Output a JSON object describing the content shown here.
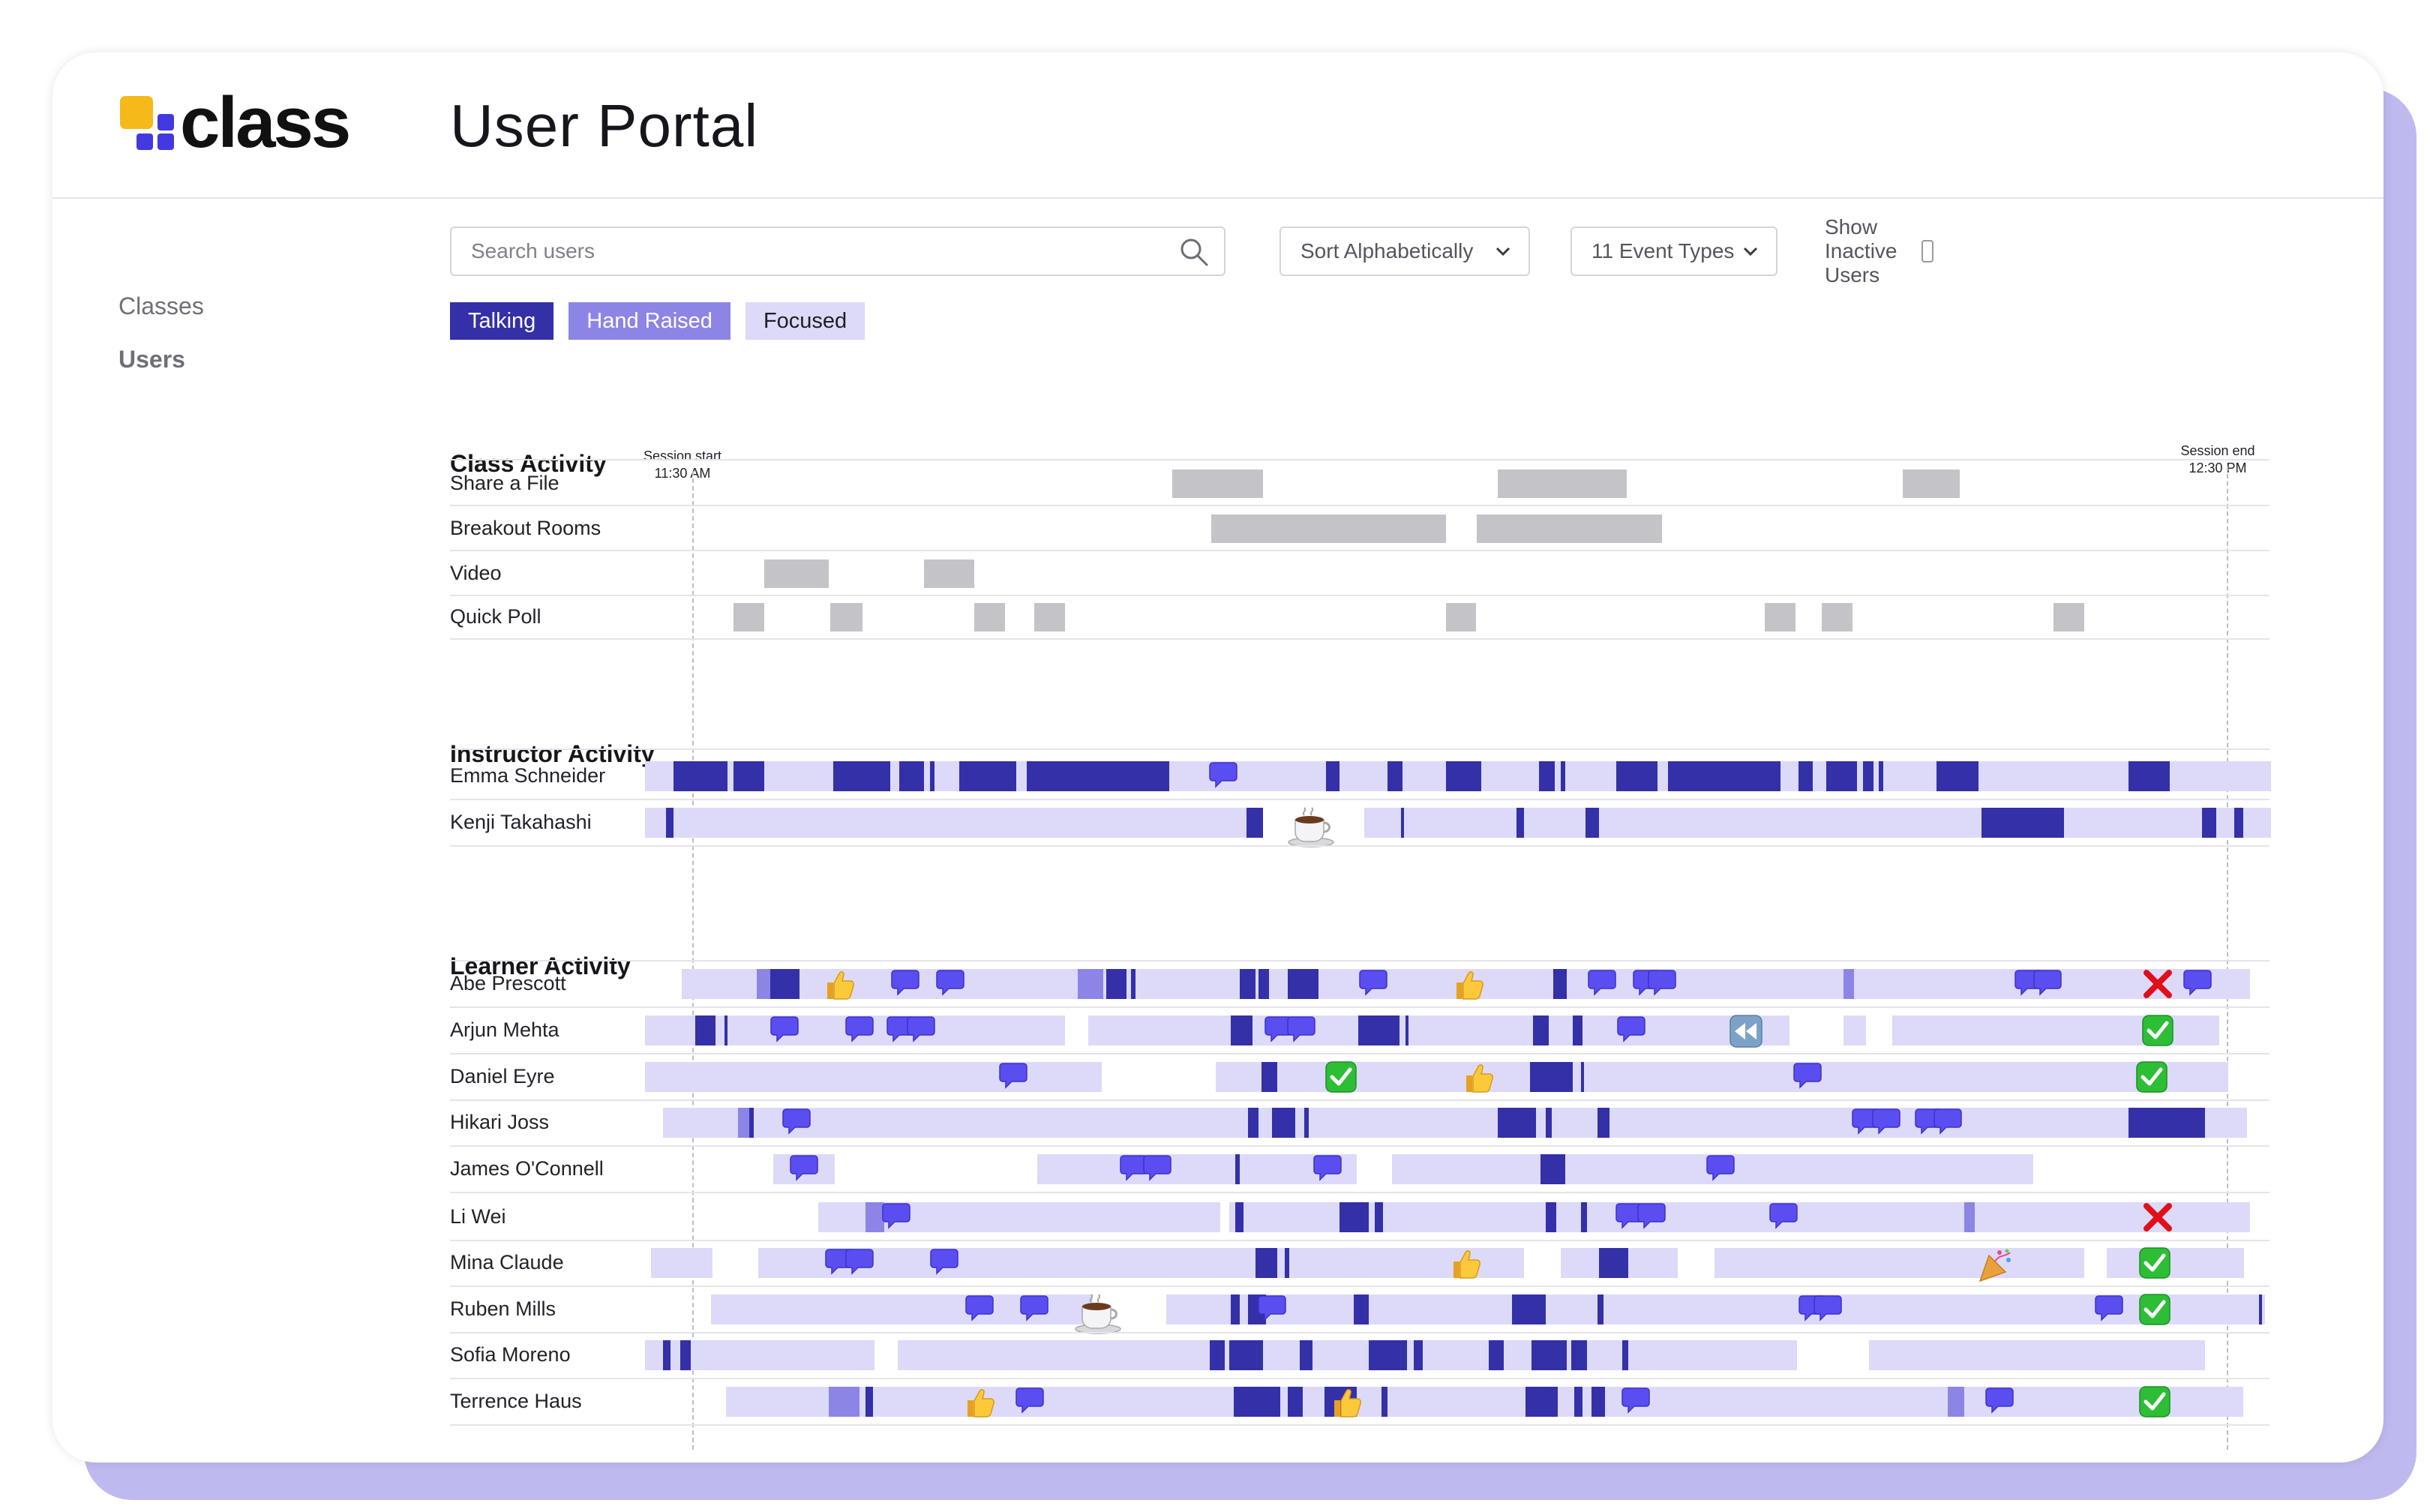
{
  "app": {
    "logo_text": "class",
    "page_title": "User Portal",
    "colors": {
      "brand_blue": "#4339e0",
      "brand_yellow": "#f6b91a",
      "talking": "#3430a8",
      "hand_raised": "#8c85e6",
      "focused": "#dcdaf8",
      "class_event": "#c4c4c8"
    }
  },
  "sidebar": {
    "items": [
      {
        "label": "Classes",
        "active": false
      },
      {
        "label": "Users",
        "active": true
      }
    ]
  },
  "toolbar": {
    "search_placeholder": "Search users",
    "search_value": "",
    "sort_label": "Sort Alphabetically",
    "event_types_label": "11 Event Types",
    "show_inactive_label": "Show Inactive Users",
    "show_inactive_checked": false
  },
  "legend": [
    "Talking",
    "Hand Raised",
    "Focused"
  ],
  "timeline": {
    "session_start_label": "Session start",
    "session_start_time": "11:30 AM",
    "session_end_label": "Session end",
    "session_end_time": "12:30 PM",
    "sections": {
      "class": "Class Activity",
      "instructor": "Instructor Activity",
      "learner": "Learner Activity"
    }
  },
  "class_activity": [
    {
      "name": "Share a File",
      "events": [
        [
          31.3,
          37.2
        ],
        [
          52.5,
          60.9
        ],
        [
          78.9,
          82.6
        ]
      ]
    },
    {
      "name": "Breakout Rooms",
      "events": [
        [
          33.8,
          49.1
        ],
        [
          51.1,
          63.2
        ]
      ]
    },
    {
      "name": "Video",
      "events": [
        [
          4.7,
          8.9
        ],
        [
          15.1,
          18.4
        ]
      ]
    },
    {
      "name": "Quick Poll",
      "events": [
        [
          2.7,
          4.7
        ],
        [
          9.0,
          11.1
        ],
        [
          18.4,
          20.4
        ],
        [
          22.3,
          24.3
        ],
        [
          49.1,
          51.1
        ],
        [
          69.9,
          71.9
        ],
        [
          73.6,
          75.6
        ],
        [
          88.7,
          90.7
        ]
      ]
    }
  ],
  "instructor_activity": [
    {
      "name": "Emma Schneider",
      "focused": [
        [
          -3.1,
          102.9
        ]
      ],
      "hand": [],
      "talking": [
        [
          -1.2,
          2.3
        ],
        [
          2.7,
          4.7
        ],
        [
          9.2,
          12.9
        ],
        [
          13.5,
          15.1
        ],
        [
          15.5,
          15.8
        ],
        [
          17.4,
          21.1
        ],
        [
          21.8,
          31.1
        ],
        [
          41.3,
          42.2
        ],
        [
          45.3,
          46.3
        ],
        [
          49.1,
          51.4
        ],
        [
          55.2,
          56.2
        ],
        [
          56.6,
          56.9
        ],
        [
          60.2,
          62.9
        ],
        [
          63.6,
          70.9
        ],
        [
          72.1,
          73.0
        ],
        [
          73.9,
          75.9
        ],
        [
          76.3,
          77.0
        ],
        [
          77.3,
          77.6
        ],
        [
          81.1,
          83.8
        ],
        [
          93.6,
          96.3
        ]
      ],
      "emojis": [
        {
          "icon": "speech-icon",
          "x": 34.7
        }
      ]
    },
    {
      "name": "Kenji Takahashi",
      "focused": [
        [
          -3.1,
          36.9
        ],
        [
          43.8,
          102.9
        ]
      ],
      "hand": [],
      "talking": [
        [
          -1.7,
          -1.2
        ],
        [
          36.1,
          37.2
        ],
        [
          46.2,
          46.4
        ],
        [
          53.7,
          54.2
        ],
        [
          58.2,
          59.1
        ],
        [
          84.0,
          89.4
        ],
        [
          98.4,
          99.3
        ],
        [
          100.5,
          101.1
        ]
      ],
      "emojis": [
        {
          "icon": "coffee-icon",
          "x": 39.8
        }
      ]
    }
  ],
  "learner_activity": [
    {
      "name": "Abe Prescott",
      "focused": [
        [
          -0.7,
          101.5
        ]
      ],
      "hand": [
        [
          4.2,
          5.1
        ],
        [
          25.1,
          26.8
        ],
        [
          75.0,
          75.7
        ]
      ],
      "talking": [
        [
          5.1,
          7.0
        ],
        [
          27.0,
          28.3
        ],
        [
          28.6,
          28.9
        ],
        [
          35.7,
          36.7
        ],
        [
          36.9,
          37.6
        ],
        [
          38.8,
          40.8
        ],
        [
          56.1,
          57.0
        ]
      ],
      "emojis": [
        {
          "icon": "thumbs-up-icon",
          "x": 9.6
        },
        {
          "icon": "speech-icon",
          "x": 14.0
        },
        {
          "icon": "speech-icon",
          "x": 16.9
        },
        {
          "icon": "speech-icon",
          "x": 44.5
        },
        {
          "icon": "thumbs-up-icon",
          "x": 50.6
        },
        {
          "icon": "speech-icon",
          "x": 59.4
        },
        {
          "icon": "speech-icon",
          "x": 62.3
        },
        {
          "icon": "speech-icon",
          "x": 63.3
        },
        {
          "icon": "speech-icon",
          "x": 87.2
        },
        {
          "icon": "speech-icon",
          "x": 88.4
        },
        {
          "icon": "cross-icon",
          "x": 95.5
        },
        {
          "icon": "speech-icon",
          "x": 98.2
        }
      ]
    },
    {
      "name": "Arjun Mehta",
      "focused": [
        [
          -3.1,
          24.3
        ],
        [
          25.8,
          71.5
        ],
        [
          75.0,
          76.5
        ],
        [
          78.2,
          99.5
        ]
      ],
      "hand": [],
      "talking": [
        [
          0.2,
          1.5
        ],
        [
          2.1,
          2.3
        ],
        [
          35.1,
          36.5
        ],
        [
          43.4,
          46.1
        ],
        [
          46.5,
          46.7
        ],
        [
          54.8,
          55.8
        ],
        [
          57.4,
          58.0
        ]
      ],
      "emojis": [
        {
          "icon": "speech-icon",
          "x": 6.1
        },
        {
          "icon": "speech-icon",
          "x": 11.0
        },
        {
          "icon": "speech-icon",
          "x": 13.7
        },
        {
          "icon": "speech-icon",
          "x": 15.0
        },
        {
          "icon": "speech-icon",
          "x": 38.3
        },
        {
          "icon": "speech-icon",
          "x": 39.8
        },
        {
          "icon": "speech-icon",
          "x": 61.3
        },
        {
          "icon": "rewind-icon",
          "x": 68.6
        },
        {
          "icon": "check-icon",
          "x": 95.5
        }
      ]
    },
    {
      "name": "Daniel Eyre",
      "focused": [
        [
          -3.1,
          26.7
        ],
        [
          34.1,
          100.1
        ]
      ],
      "hand": [],
      "talking": [
        [
          37.1,
          38.1
        ],
        [
          54.6,
          57.4
        ],
        [
          57.9,
          58.1
        ]
      ],
      "emojis": [
        {
          "icon": "speech-icon",
          "x": 21.0
        },
        {
          "icon": "check-icon",
          "x": 42.3
        },
        {
          "icon": "thumbs-up-icon",
          "x": 51.2
        },
        {
          "icon": "speech-icon",
          "x": 72.8
        },
        {
          "icon": "check-icon",
          "x": 95.1
        }
      ]
    },
    {
      "name": "Hikari Joss",
      "focused": [
        [
          -1.9,
          101.3
        ]
      ],
      "hand": [
        [
          3.0,
          3.7
        ]
      ],
      "talking": [
        [
          3.7,
          4.0
        ],
        [
          36.2,
          36.9
        ],
        [
          37.8,
          39.3
        ],
        [
          39.9,
          40.2
        ],
        [
          52.5,
          55.0
        ],
        [
          55.6,
          56.0
        ],
        [
          59.0,
          59.8
        ],
        [
          93.6,
          98.6
        ]
      ],
      "emojis": [
        {
          "icon": "speech-icon",
          "x": 6.9
        },
        {
          "icon": "speech-icon",
          "x": 76.6
        },
        {
          "icon": "speech-icon",
          "x": 77.9
        },
        {
          "icon": "speech-icon",
          "x": 80.7
        },
        {
          "icon": "speech-icon",
          "x": 81.9
        }
      ]
    },
    {
      "name": "James O'Connell",
      "focused": [
        [
          5.3,
          9.3
        ],
        [
          22.5,
          43.3
        ],
        [
          45.6,
          87.4
        ]
      ],
      "hand": [],
      "talking": [
        [
          35.4,
          35.7
        ],
        [
          55.3,
          56.9
        ]
      ],
      "emojis": [
        {
          "icon": "speech-icon",
          "x": 7.4
        },
        {
          "icon": "speech-icon",
          "x": 28.9
        },
        {
          "icon": "speech-icon",
          "x": 30.4
        },
        {
          "icon": "speech-icon",
          "x": 41.5
        },
        {
          "icon": "speech-icon",
          "x": 67.1
        }
      ]
    },
    {
      "name": "Li Wei",
      "focused": [
        [
          8.2,
          34.4
        ],
        [
          35.0,
          101.5
        ]
      ],
      "hand": [
        [
          11.3,
          12.5
        ],
        [
          82.9,
          83.6
        ]
      ],
      "talking": [
        [
          35.4,
          35.9
        ],
        [
          42.2,
          44.1
        ],
        [
          44.5,
          45.0
        ],
        [
          55.6,
          56.3
        ],
        [
          57.9,
          58.3
        ]
      ],
      "emojis": [
        {
          "icon": "speech-icon",
          "x": 13.4
        },
        {
          "icon": "speech-icon",
          "x": 61.2
        },
        {
          "icon": "speech-icon",
          "x": 62.6
        },
        {
          "icon": "speech-icon",
          "x": 71.2
        },
        {
          "icon": "cross-icon",
          "x": 95.5
        }
      ]
    },
    {
      "name": "Mina Claude",
      "focused": [
        [
          -2.7,
          1.3
        ],
        [
          4.3,
          54.2
        ],
        [
          56.6,
          64.2
        ],
        [
          66.6,
          90.7
        ],
        [
          92.2,
          101.1
        ]
      ],
      "hand": [],
      "talking": [
        [
          36.7,
          38.1
        ],
        [
          38.6,
          38.9
        ],
        [
          59.1,
          61.0
        ]
      ],
      "emojis": [
        {
          "icon": "speech-icon",
          "x": 9.7
        },
        {
          "icon": "speech-icon",
          "x": 11.0
        },
        {
          "icon": "speech-icon",
          "x": 16.5
        },
        {
          "icon": "thumbs-up-icon",
          "x": 50.4
        },
        {
          "icon": "party-icon",
          "x": 84.8
        },
        {
          "icon": "check-icon",
          "x": 95.3
        }
      ]
    },
    {
      "name": "Ruben Mills",
      "focused": [
        [
          1.2,
          26.1
        ],
        [
          30.9,
          102.5
        ]
      ],
      "hand": [],
      "talking": [
        [
          35.1,
          35.7
        ],
        [
          36.2,
          37.4
        ],
        [
          43.1,
          44.1
        ],
        [
          53.4,
          55.6
        ],
        [
          59.0,
          59.4
        ],
        [
          102.1,
          102.3
        ]
      ],
      "emojis": [
        {
          "icon": "speech-icon",
          "x": 18.8
        },
        {
          "icon": "speech-icon",
          "x": 22.4
        },
        {
          "icon": "coffee-icon",
          "x": 25.9
        },
        {
          "icon": "speech-icon",
          "x": 37.9
        },
        {
          "icon": "speech-icon",
          "x": 73.1
        },
        {
          "icon": "speech-icon",
          "x": 74.1
        },
        {
          "icon": "speech-icon",
          "x": 92.4
        },
        {
          "icon": "check-icon",
          "x": 95.3
        }
      ]
    },
    {
      "name": "Sofia Moreno",
      "focused": [
        [
          -3.1,
          11.9
        ],
        [
          13.4,
          72.0
        ],
        [
          76.7,
          98.6
        ]
      ],
      "hand": [],
      "talking": [
        [
          -1.9,
          -1.4
        ],
        [
          -0.8,
          -0.1
        ],
        [
          33.7,
          34.7
        ],
        [
          35.0,
          37.2
        ],
        [
          39.6,
          40.4
        ],
        [
          44.1,
          46.6
        ],
        [
          47.0,
          47.6
        ],
        [
          51.9,
          52.9
        ],
        [
          54.7,
          57.0
        ],
        [
          57.3,
          58.3
        ],
        [
          60.6,
          61.0
        ]
      ],
      "emojis": []
    },
    {
      "name": "Terrence Haus",
      "focused": [
        [
          2.2,
          101.1
        ]
      ],
      "hand": [
        [
          8.9,
          10.9
        ],
        [
          81.8,
          82.9
        ]
      ],
      "talking": [
        [
          11.3,
          11.8
        ],
        [
          35.3,
          38.3
        ],
        [
          38.8,
          39.8
        ],
        [
          41.2,
          43.3
        ],
        [
          44.9,
          45.3
        ],
        [
          54.3,
          56.4
        ],
        [
          57.5,
          58.0
        ],
        [
          58.6,
          59.5
        ]
      ],
      "emojis": [
        {
          "icon": "thumbs-up-icon",
          "x": 18.7
        },
        {
          "icon": "speech-icon",
          "x": 22.1
        },
        {
          "icon": "thumbs-up-icon",
          "x": 42.6
        },
        {
          "icon": "speech-icon",
          "x": 61.6
        },
        {
          "icon": "speech-icon",
          "x": 85.3
        },
        {
          "icon": "check-icon",
          "x": 95.3
        }
      ]
    }
  ]
}
